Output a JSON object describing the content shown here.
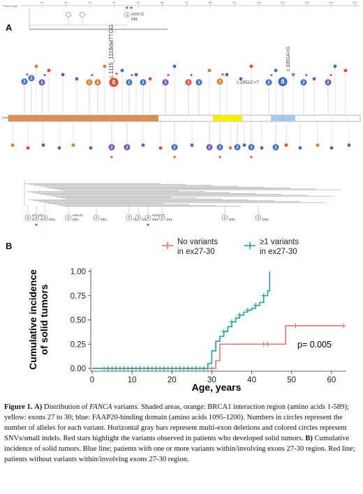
{
  "panel_a": {
    "label": "A",
    "ruler_label": "Protein length",
    "ruler_ticks": [
      "100",
      "200",
      "300",
      "400",
      "500",
      "600",
      "700",
      "800",
      "900",
      "1000",
      "1100",
      "1200",
      "1300",
      "1400"
    ],
    "gene_label": "FANCA",
    "top_annotation": {
      "count": "2",
      "name": "ex18-12",
      "type": "DEL"
    },
    "upper_variants": [
      {
        "count": "2",
        "color": "#3a6fc4"
      },
      {
        "count": "2",
        "color": "#3a6fc4"
      },
      {
        "count": "2",
        "color": "#7a4fb3"
      },
      {
        "count": "2",
        "color": "#e07a2e"
      },
      {
        "count": "2",
        "color": "#e07a2e"
      },
      {
        "count": "6",
        "color": "#e24c33"
      },
      {
        "count": "2",
        "color": "#3a6fc4"
      },
      {
        "count": "2",
        "color": "#3a6fc4"
      },
      {
        "count": "2",
        "color": "#7a4fb3"
      },
      {
        "count": "2",
        "color": "#e24c33"
      },
      {
        "count": "3",
        "color": "#3a6fc4"
      },
      {
        "count": "2",
        "color": "#e07a2e"
      },
      {
        "count": "2",
        "color": "#3a6fc4"
      },
      {
        "count": "8",
        "color": "#3a6fc4"
      },
      {
        "count": "2",
        "color": "#3a6fc4"
      },
      {
        "count": "2",
        "color": "#7a4fb3"
      }
    ],
    "upper_labels": [
      "c.1115_1118delTTGG",
      "c.2851C>T",
      "c.3391A>G"
    ],
    "lower_variants": [
      {
        "count": "2",
        "color": "#7a4fb3"
      },
      {
        "count": "2",
        "color": "#7a4fb3"
      },
      {
        "count": "2",
        "color": "#3a6fc4"
      },
      {
        "count": "2",
        "color": "#7a4fb3"
      },
      {
        "count": "2",
        "color": "#3a6fc4"
      },
      {
        "count": "2",
        "color": "#3a6fc4"
      },
      {
        "count": "3",
        "color": "#3a6fc4"
      },
      {
        "count": "2",
        "color": "#3a6fc4"
      }
    ],
    "deletions": [
      {
        "count": "2",
        "name": "ex1-43",
        "type": "DEL"
      },
      {
        "count": "4",
        "name": "",
        "type": "DEL"
      },
      {
        "count": "3",
        "name": "",
        "type": "DEL"
      },
      {
        "count": "2",
        "name": "ex6-21",
        "type": "DEL"
      },
      {
        "count": "2",
        "name": "",
        "type": "DEL"
      },
      {
        "count": "2",
        "name": "",
        "type": "DEL"
      },
      {
        "count": "2",
        "name": "",
        "type": "DEL"
      },
      {
        "count": "4",
        "name": "ex22-28",
        "type": "DEL"
      },
      {
        "count": "2",
        "name": "",
        "type": "DEL"
      },
      {
        "count": "2",
        "name": "",
        "type": "DEL"
      },
      {
        "count": "2",
        "name": "",
        "type": "DEL"
      }
    ],
    "colors": {
      "brca1_region": "#d99156",
      "exons_27_30": "#f6f000",
      "faap20": "#a8c8ec",
      "star": "#d42020"
    }
  },
  "panel_b": {
    "label": "B",
    "legend": [
      {
        "label_line1": "No variants",
        "label_line2": "in ex27-30",
        "color": "#e8776a"
      },
      {
        "label_line1": "≥1 variants",
        "label_line2": "in ex27-30",
        "color": "#1aa3a3"
      }
    ],
    "annotation": "p= 0.005"
  },
  "chart_data": {
    "type": "line",
    "xlabel": "Age, years",
    "ylabel": "Cumulative incidence of solid tumors",
    "ylabel_line1": "Cumulative incidence",
    "ylabel_line2": "of solid tumors",
    "xlim": [
      0,
      63
    ],
    "ylim": [
      0,
      1.0
    ],
    "x_ticks": [
      "0",
      "10",
      "20",
      "30",
      "40",
      "50",
      "60"
    ],
    "y_ticks": [
      "0.00",
      "0.25",
      "0.50",
      "0.75",
      "1.00"
    ],
    "grid": true,
    "series": [
      {
        "name": "No variants in ex27-30",
        "color": "#e8776a",
        "step_x": [
          0,
          31,
          32,
          48.5,
          63
        ],
        "step_y": [
          0,
          0.08,
          0.25,
          0.44,
          0.44
        ],
        "censor_x": [
          3,
          5,
          7,
          9,
          11,
          13,
          15,
          17,
          19,
          21,
          23,
          25,
          27,
          29,
          30,
          43,
          44,
          51,
          63
        ],
        "censor_y": [
          0,
          0,
          0,
          0,
          0,
          0,
          0,
          0,
          0,
          0,
          0,
          0,
          0,
          0,
          0,
          0.25,
          0.25,
          0.44,
          0.44
        ]
      },
      {
        "name": "≥1 variants in ex27-30",
        "color": "#1aa3a3",
        "step_x": [
          0,
          29,
          30,
          31,
          32,
          33,
          34,
          35,
          36,
          37,
          38,
          39,
          40,
          41,
          42,
          43,
          44,
          44.5
        ],
        "step_y": [
          0,
          0.05,
          0.18,
          0.28,
          0.33,
          0.38,
          0.43,
          0.48,
          0.52,
          0.55,
          0.58,
          0.6,
          0.62,
          0.65,
          0.68,
          0.75,
          0.8,
          1.0
        ],
        "censor_x": [
          4,
          6,
          8,
          10,
          12,
          14,
          16,
          18,
          20,
          22,
          24,
          26,
          28,
          33,
          35,
          37,
          39,
          41,
          43
        ],
        "censor_y": [
          0,
          0,
          0,
          0,
          0,
          0,
          0,
          0,
          0,
          0,
          0,
          0,
          0,
          0.38,
          0.48,
          0.55,
          0.6,
          0.65,
          0.75
        ]
      }
    ]
  },
  "caption": {
    "fig_label": "Figure 1.",
    "part_a_label": "A)",
    "s1": "Distribution of",
    "gene": "FANCA",
    "s2": "variants. Shaded areas, orange: BRCA1 interaction region (amino acids 1-589); yellow: exons 27 to 30; blue: FAAP20-binding domain (amino acids 1095-1200). Numbers in circles represent the number of alleles for each variant. Horizontal gray bars represent multi-exon deletions and colored circles represent SNVs/small indels. Red stars highlight the variants observed in patients who developed solid tumors.",
    "part_b_label": "B)",
    "s3": "Cumulative incidence of solid tumors. Blue line; patients with one or more variants within/involving exons 27-30 region. Red line; patients without variants within/involving exons 27-30 region."
  }
}
